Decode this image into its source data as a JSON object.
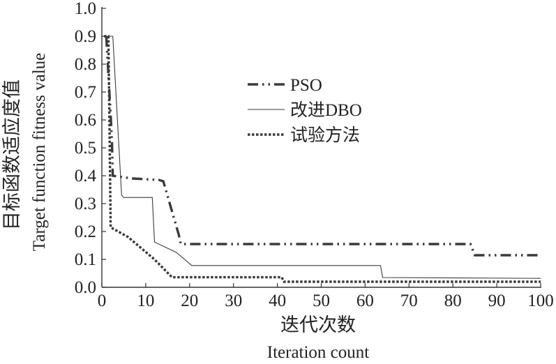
{
  "chart_data": {
    "type": "line",
    "xlabel_cn": "迭代次数",
    "xlabel_en": "Iteration count",
    "ylabel_cn": "目标函数适应度值",
    "ylabel_en": "Target function fitness value",
    "xlim": [
      0,
      100
    ],
    "ylim": [
      0,
      1.0
    ],
    "xticks": [
      0,
      10,
      20,
      30,
      40,
      50,
      60,
      70,
      80,
      90,
      100
    ],
    "yticks": [
      0.0,
      0.1,
      0.2,
      0.3,
      0.4,
      0.5,
      0.6,
      0.7,
      0.8,
      0.9,
      1.0
    ],
    "xtick_labels": [
      "0",
      "10",
      "20",
      "30",
      "40",
      "50",
      "60",
      "70",
      "80",
      "90",
      "100"
    ],
    "ytick_labels": [
      "0.0",
      "0.1",
      "0.2",
      "0.3",
      "0.4",
      "0.5",
      "0.6",
      "0.7",
      "0.8",
      "0.9",
      "1.0"
    ],
    "grid": false,
    "legend_position": "upper-middle",
    "series": [
      {
        "name": "PSO",
        "style": "dash-dot-dot",
        "color": "#3a3a3a",
        "x": [
          1,
          2,
          2.3,
          2.5,
          7,
          13,
          14,
          17.5,
          18,
          84,
          85,
          100
        ],
        "y": [
          0.9,
          0.62,
          0.52,
          0.4,
          0.39,
          0.385,
          0.38,
          0.19,
          0.155,
          0.155,
          0.115,
          0.115
        ]
      },
      {
        "name": "改进DBO",
        "style": "solid",
        "color": "#3a3a3a",
        "x": [
          0.5,
          2.5,
          4.5,
          5,
          11.5,
          12,
          17,
          20.5,
          63.5,
          64,
          100
        ],
        "y": [
          0.9,
          0.9,
          0.33,
          0.322,
          0.322,
          0.162,
          0.125,
          0.078,
          0.078,
          0.035,
          0.032
        ]
      },
      {
        "name": "试验方法",
        "style": "dotted",
        "color": "#3a3a3a",
        "x": [
          0.5,
          1.5,
          1.8,
          2,
          6,
          12,
          16,
          16.5,
          41,
          41.5,
          100
        ],
        "y": [
          0.9,
          0.9,
          0.5,
          0.215,
          0.18,
          0.1,
          0.036,
          0.036,
          0.036,
          0.02,
          0.02
        ]
      }
    ]
  }
}
